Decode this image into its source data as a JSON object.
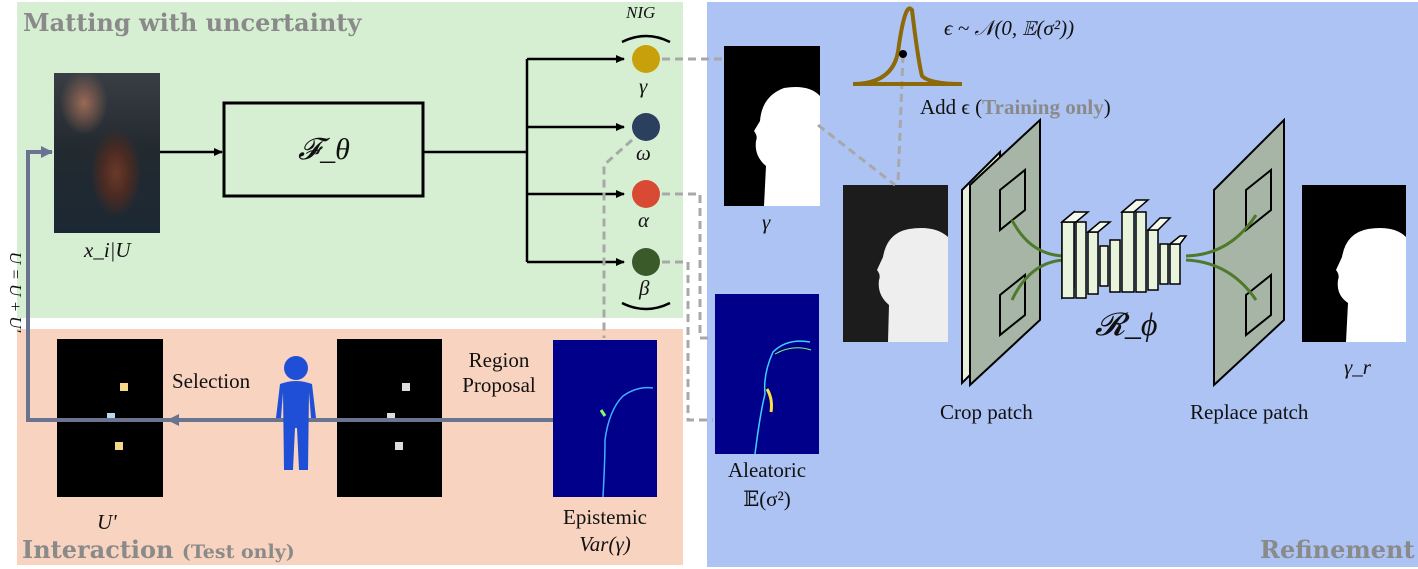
{
  "panels": {
    "matting_title": "Matting with uncertainty",
    "interaction_title": "Interaction",
    "interaction_sub": "(Test only)",
    "refinement_title": "Refinement"
  },
  "matting": {
    "input_label": "x_i|U",
    "network_label": "𝓕_θ",
    "nig_label": "NIG",
    "outputs": [
      "γ",
      "ω",
      "α",
      "β"
    ],
    "output_colors": [
      "#c8a10a",
      "#2b3f5e",
      "#d94a35",
      "#3a5a2a"
    ],
    "feedback_label": "U = U + U'"
  },
  "interaction": {
    "uprime_label": "U'",
    "selection_label": "Selection",
    "region_label_1": "Region",
    "region_label_2": "Proposal",
    "epistemic_label": "Epistemic",
    "epistemic_formula": "Var(γ)"
  },
  "refinement": {
    "gamma_label": "γ",
    "aleatoric_label": "Aleatoric",
    "aleatoric_formula": "𝔼(σ²)",
    "noise_formula": "ϵ ~ 𝒩(0, 𝔼(σ²))",
    "add_noise_prefix": "Add ϵ (",
    "add_noise_bold": "Training only",
    "add_noise_suffix": ")",
    "crop_label": "Crop patch",
    "replace_label": "Replace patch",
    "refiner_label": "𝓡_ϕ",
    "output_label": "γ_r"
  }
}
